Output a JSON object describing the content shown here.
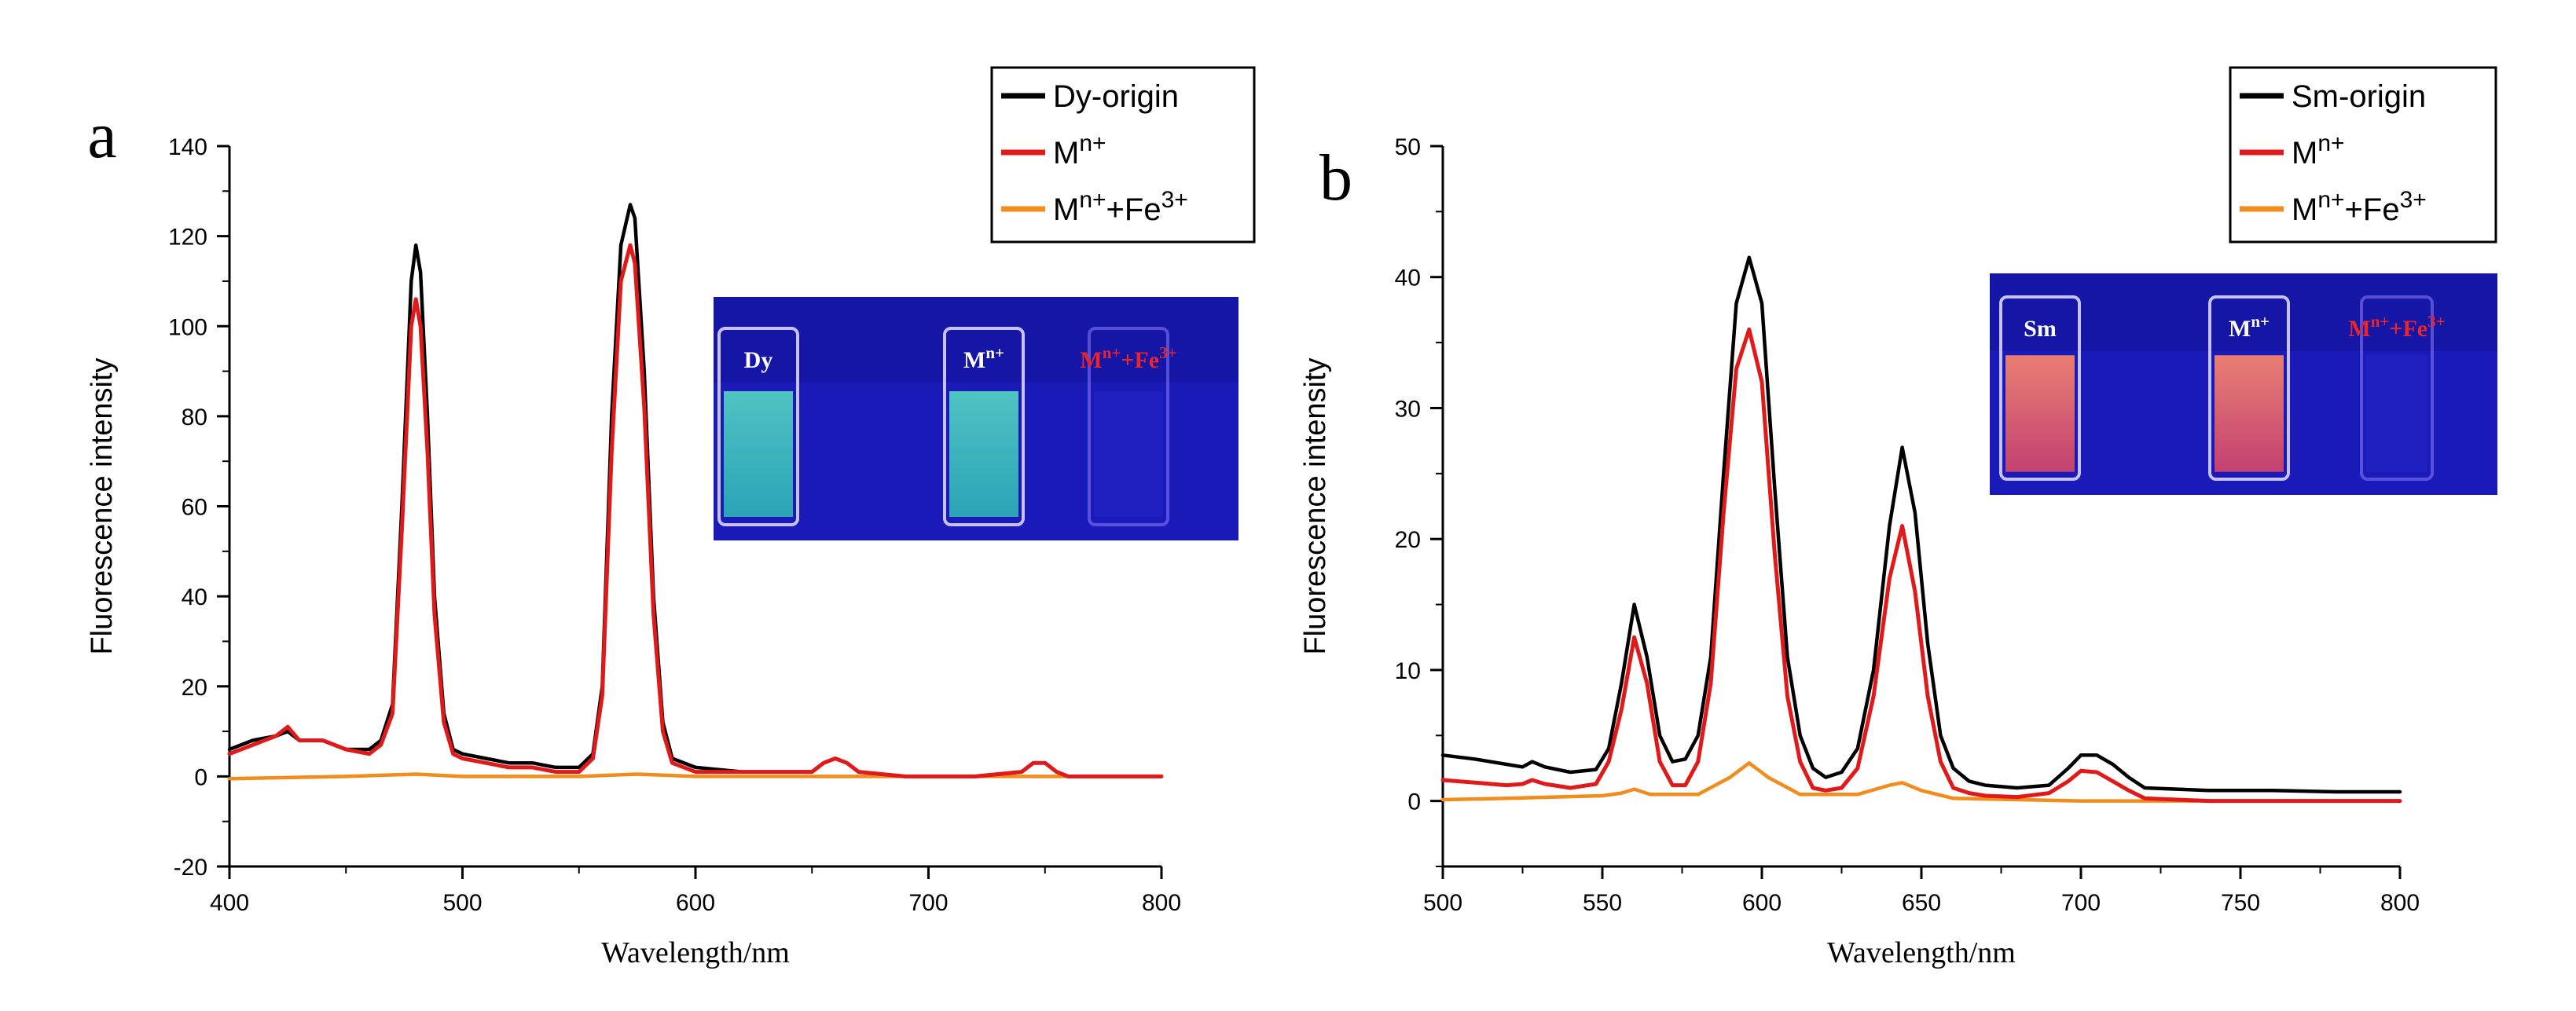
{
  "chart_data": [
    {
      "type": "line",
      "panel_label": "a",
      "xlabel": "Wavelength/nm",
      "ylabel": "Fluorescence intensity",
      "xlim": [
        400,
        800
      ],
      "ylim": [
        -20,
        140
      ],
      "xticks": [
        400,
        500,
        600,
        700,
        800
      ],
      "yticks": [
        -20,
        0,
        20,
        40,
        60,
        80,
        100,
        120,
        140
      ],
      "legend_position": "top-right",
      "grid": false,
      "series": [
        {
          "name": "Dy-origin",
          "color": "#000000",
          "x": [
            400,
            410,
            420,
            425,
            430,
            440,
            450,
            460,
            465,
            470,
            474,
            478,
            480,
            482,
            485,
            488,
            492,
            496,
            500,
            510,
            520,
            530,
            540,
            550,
            556,
            560,
            564,
            568,
            572,
            574,
            578,
            582,
            586,
            590,
            600,
            620,
            640,
            650,
            655,
            660,
            665,
            670,
            690,
            720,
            740,
            745,
            750,
            755,
            760,
            780,
            800
          ],
          "y": [
            6,
            8,
            9,
            10,
            8,
            8,
            6,
            6,
            8,
            16,
            60,
            110,
            118,
            112,
            80,
            40,
            14,
            6,
            5,
            4,
            3,
            3,
            2,
            2,
            5,
            20,
            80,
            118,
            127,
            124,
            90,
            40,
            12,
            4,
            2,
            1,
            1,
            1,
            3,
            4,
            3,
            1,
            0,
            0,
            1,
            3,
            3,
            1,
            0,
            0,
            0
          ]
        },
        {
          "name": "M",
          "name_sup": "n+",
          "color": "#e01a1a",
          "x": [
            400,
            410,
            420,
            425,
            430,
            440,
            450,
            460,
            465,
            470,
            474,
            478,
            480,
            482,
            485,
            488,
            492,
            496,
            500,
            510,
            520,
            530,
            540,
            550,
            556,
            560,
            564,
            568,
            572,
            574,
            578,
            582,
            586,
            590,
            600,
            620,
            640,
            650,
            655,
            660,
            665,
            670,
            690,
            720,
            740,
            745,
            750,
            755,
            760,
            780,
            800
          ],
          "y": [
            5,
            7,
            9,
            11,
            8,
            8,
            6,
            5,
            7,
            14,
            55,
            100,
            106,
            100,
            72,
            36,
            12,
            5,
            4,
            3,
            2,
            2,
            1,
            1,
            4,
            18,
            72,
            110,
            118,
            114,
            82,
            36,
            10,
            3,
            1,
            1,
            1,
            1,
            3,
            4,
            3,
            1,
            0,
            0,
            1,
            3,
            3,
            1,
            0,
            0,
            0
          ]
        },
        {
          "name": "M",
          "name_sup": "n+",
          "name_suffix": "+Fe",
          "name_suffix_sup": "3+",
          "color": "#f28c1c",
          "x": [
            400,
            450,
            480,
            500,
            550,
            575,
            600,
            650,
            700,
            750,
            800
          ],
          "y": [
            -0.5,
            0,
            0.5,
            0,
            0,
            0.5,
            0,
            0,
            0,
            0,
            0
          ]
        }
      ],
      "inset": {
        "labels": [
          "Dy",
          "M",
          "M"
        ],
        "label_sups": [
          "",
          "n+",
          "n+"
        ],
        "label_suffixes": [
          "",
          "",
          "+Fe"
        ],
        "label_suffix_sups": [
          "",
          "",
          "3+"
        ]
      }
    },
    {
      "type": "line",
      "panel_label": "b",
      "xlabel": "Wavelength/nm",
      "ylabel": "Fluorescence intensity",
      "xlim": [
        500,
        800
      ],
      "ylim": [
        -5,
        50
      ],
      "xticks": [
        500,
        550,
        600,
        650,
        700,
        750,
        800
      ],
      "yticks": [
        0,
        10,
        20,
        30,
        40,
        50
      ],
      "legend_position": "top-right",
      "grid": false,
      "series": [
        {
          "name": "Sm-origin",
          "color": "#000000",
          "x": [
            500,
            510,
            520,
            525,
            528,
            532,
            540,
            548,
            552,
            556,
            560,
            564,
            568,
            572,
            576,
            580,
            584,
            588,
            592,
            596,
            600,
            604,
            608,
            612,
            616,
            620,
            625,
            630,
            635,
            640,
            644,
            648,
            652,
            656,
            660,
            665,
            670,
            680,
            690,
            696,
            700,
            705,
            710,
            715,
            720,
            740,
            760,
            780,
            800
          ],
          "y": [
            3.5,
            3.2,
            2.8,
            2.6,
            3,
            2.6,
            2.2,
            2.4,
            4,
            9,
            15,
            11,
            5,
            3,
            3.2,
            5,
            11,
            25,
            38,
            41.5,
            38,
            24,
            11,
            5,
            2.5,
            1.8,
            2.2,
            4,
            10,
            21,
            27,
            22,
            12,
            5,
            2.5,
            1.5,
            1.2,
            1,
            1.2,
            2.5,
            3.5,
            3.5,
            2.8,
            1.8,
            1,
            0.8,
            0.8,
            0.7,
            0.7
          ]
        },
        {
          "name": "M",
          "name_sup": "n+",
          "color": "#e01a1a",
          "x": [
            500,
            510,
            520,
            525,
            528,
            532,
            540,
            548,
            552,
            556,
            560,
            564,
            568,
            572,
            576,
            580,
            584,
            588,
            592,
            596,
            600,
            604,
            608,
            612,
            616,
            620,
            625,
            630,
            635,
            640,
            644,
            648,
            652,
            656,
            660,
            665,
            670,
            680,
            690,
            696,
            700,
            705,
            710,
            715,
            720,
            740,
            760,
            780,
            800
          ],
          "y": [
            1.6,
            1.4,
            1.2,
            1.3,
            1.6,
            1.3,
            1,
            1.3,
            3,
            7,
            12.5,
            9,
            3,
            1.2,
            1.2,
            3,
            9,
            22,
            33,
            36,
            32,
            19,
            8,
            3,
            1,
            0.8,
            1,
            2.5,
            8,
            17,
            21,
            16,
            8,
            3,
            1,
            0.6,
            0.4,
            0.3,
            0.6,
            1.5,
            2.3,
            2.2,
            1.5,
            0.8,
            0.2,
            0,
            0,
            0,
            0
          ]
        },
        {
          "name": "M",
          "name_sup": "n+",
          "name_suffix": "+Fe",
          "name_suffix_sup": "3+",
          "color": "#f28c1c",
          "x": [
            500,
            520,
            550,
            556,
            560,
            565,
            580,
            590,
            596,
            602,
            612,
            630,
            640,
            644,
            650,
            660,
            700,
            750,
            800
          ],
          "y": [
            0.1,
            0.2,
            0.4,
            0.6,
            0.9,
            0.5,
            0.5,
            1.8,
            2.9,
            1.8,
            0.5,
            0.5,
            1.2,
            1.4,
            0.8,
            0.2,
            0,
            0,
            0
          ]
        }
      ],
      "inset": {
        "labels": [
          "Sm",
          "M",
          "M"
        ],
        "label_sups": [
          "",
          "n+",
          "n+"
        ],
        "label_suffixes": [
          "",
          "",
          "+Fe"
        ],
        "label_suffix_sups": [
          "",
          "",
          "3+"
        ]
      }
    }
  ]
}
